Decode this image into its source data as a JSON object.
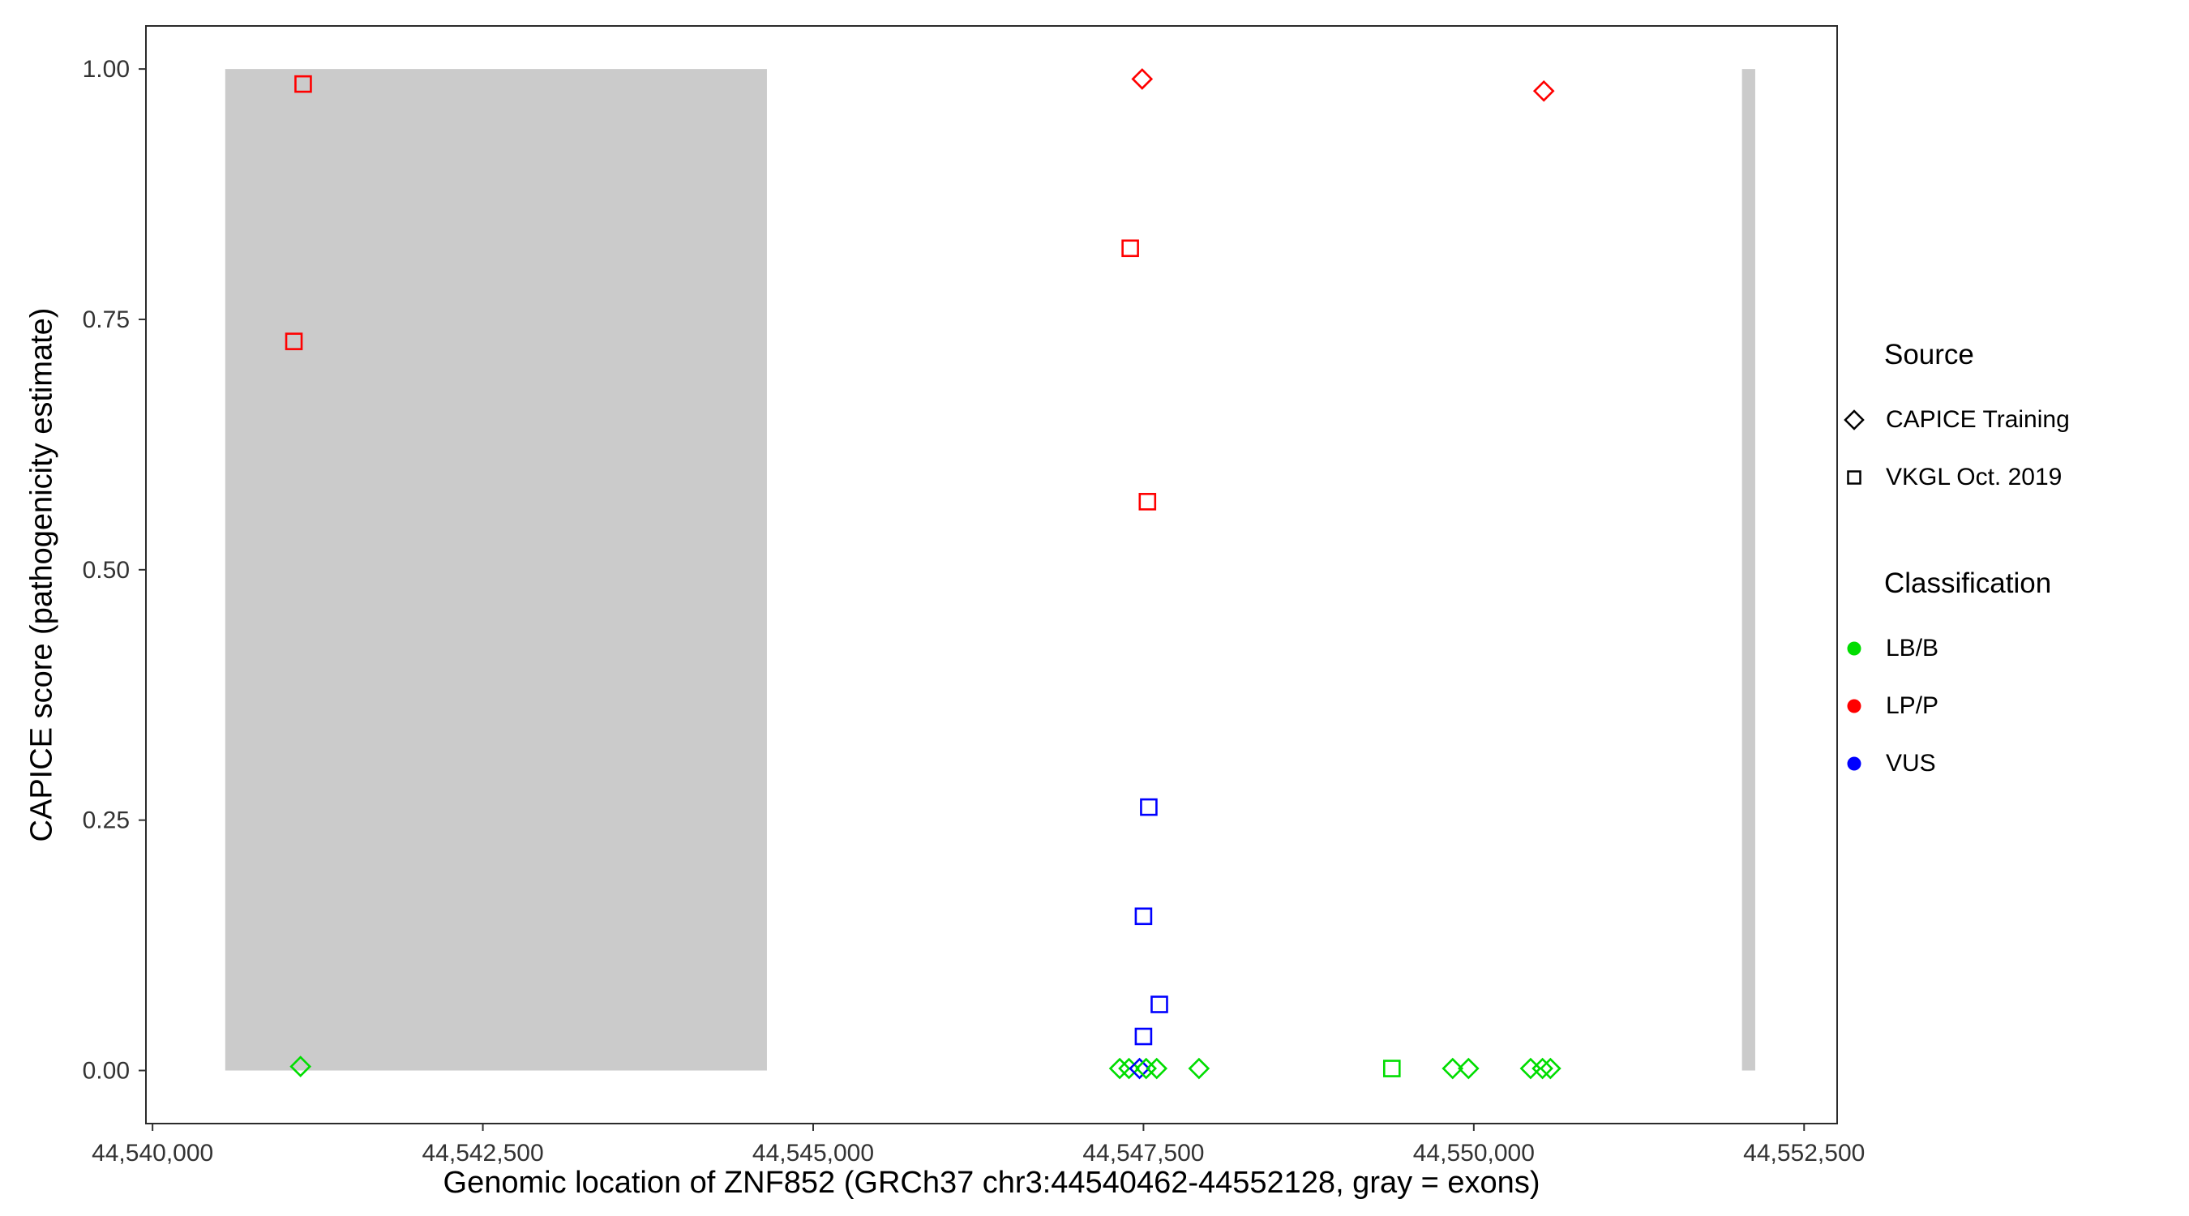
{
  "chart_data": {
    "type": "scatter",
    "title": "",
    "xlabel": "Genomic location of ZNF852 (GRCh37 chr3:44540462-44552128, gray = exons)",
    "ylabel": "CAPICE score (pathogenicity estimate)",
    "xlim": [
      44539950,
      44552750
    ],
    "ylim": [
      -0.053,
      1.043
    ],
    "grid": false,
    "x_ticks": [
      {
        "value": 44540000,
        "label": "44,540,000"
      },
      {
        "value": 44542500,
        "label": "44,542,500"
      },
      {
        "value": 44545000,
        "label": "44,545,000"
      },
      {
        "value": 44547500,
        "label": "44,547,500"
      },
      {
        "value": 44550000,
        "label": "44,550,000"
      },
      {
        "value": 44552500,
        "label": "44,552,500"
      }
    ],
    "y_ticks": [
      {
        "value": 0.0,
        "label": "0.00"
      },
      {
        "value": 0.25,
        "label": "0.25"
      },
      {
        "value": 0.5,
        "label": "0.50"
      },
      {
        "value": 0.75,
        "label": "0.75"
      },
      {
        "value": 1.0,
        "label": "1.00"
      }
    ],
    "exon_color": "#cbcbcb",
    "exons": [
      {
        "start": 44540550,
        "end": 44544650
      },
      {
        "start": 44552030,
        "end": 44552130
      }
    ],
    "points": [
      {
        "pos": 44541140,
        "score": 0.985,
        "source": "VKGL Oct. 2019",
        "classification": "LP/P"
      },
      {
        "pos": 44541070,
        "score": 0.728,
        "source": "VKGL Oct. 2019",
        "classification": "LP/P"
      },
      {
        "pos": 44541120,
        "score": 0.004,
        "source": "CAPICE Training",
        "classification": "LB/B"
      },
      {
        "pos": 44547490,
        "score": 0.99,
        "source": "CAPICE Training",
        "classification": "LP/P"
      },
      {
        "pos": 44547400,
        "score": 0.821,
        "source": "VKGL Oct. 2019",
        "classification": "LP/P"
      },
      {
        "pos": 44547530,
        "score": 0.568,
        "source": "VKGL Oct. 2019",
        "classification": "LP/P"
      },
      {
        "pos": 44547540,
        "score": 0.263,
        "source": "VKGL Oct. 2019",
        "classification": "VUS"
      },
      {
        "pos": 44547500,
        "score": 0.154,
        "source": "VKGL Oct. 2019",
        "classification": "VUS"
      },
      {
        "pos": 44547620,
        "score": 0.066,
        "source": "VKGL Oct. 2019",
        "classification": "VUS"
      },
      {
        "pos": 44547500,
        "score": 0.034,
        "source": "VKGL Oct. 2019",
        "classification": "VUS"
      },
      {
        "pos": 44547320,
        "score": 0.002,
        "source": "CAPICE Training",
        "classification": "LB/B"
      },
      {
        "pos": 44547390,
        "score": 0.002,
        "source": "CAPICE Training",
        "classification": "LB/B"
      },
      {
        "pos": 44547470,
        "score": 0.002,
        "source": "CAPICE Training",
        "classification": "VUS"
      },
      {
        "pos": 44547520,
        "score": 0.002,
        "source": "CAPICE Training",
        "classification": "LB/B"
      },
      {
        "pos": 44547600,
        "score": 0.002,
        "source": "CAPICE Training",
        "classification": "LB/B"
      },
      {
        "pos": 44547920,
        "score": 0.002,
        "source": "CAPICE Training",
        "classification": "LB/B"
      },
      {
        "pos": 44549380,
        "score": 0.002,
        "source": "VKGL Oct. 2019",
        "classification": "LB/B"
      },
      {
        "pos": 44549840,
        "score": 0.002,
        "source": "CAPICE Training",
        "classification": "LB/B"
      },
      {
        "pos": 44549960,
        "score": 0.002,
        "source": "CAPICE Training",
        "classification": "LB/B"
      },
      {
        "pos": 44550430,
        "score": 0.002,
        "source": "CAPICE Training",
        "classification": "LB/B"
      },
      {
        "pos": 44550520,
        "score": 0.002,
        "source": "CAPICE Training",
        "classification": "LB/B"
      },
      {
        "pos": 44550580,
        "score": 0.002,
        "source": "CAPICE Training",
        "classification": "LB/B"
      },
      {
        "pos": 44550530,
        "score": 0.978,
        "source": "CAPICE Training",
        "classification": "LP/P"
      }
    ],
    "legend": {
      "source": {
        "title": "Source",
        "items": [
          {
            "label": "CAPICE Training",
            "shape": "diamond"
          },
          {
            "label": "VKGL Oct. 2019",
            "shape": "square"
          }
        ]
      },
      "classification": {
        "title": "Classification",
        "items": [
          {
            "label": "LB/B",
            "color": "#00dd00"
          },
          {
            "label": "LP/P",
            "color": "#ff0000"
          },
          {
            "label": "VUS",
            "color": "#0000ff"
          }
        ]
      }
    }
  }
}
